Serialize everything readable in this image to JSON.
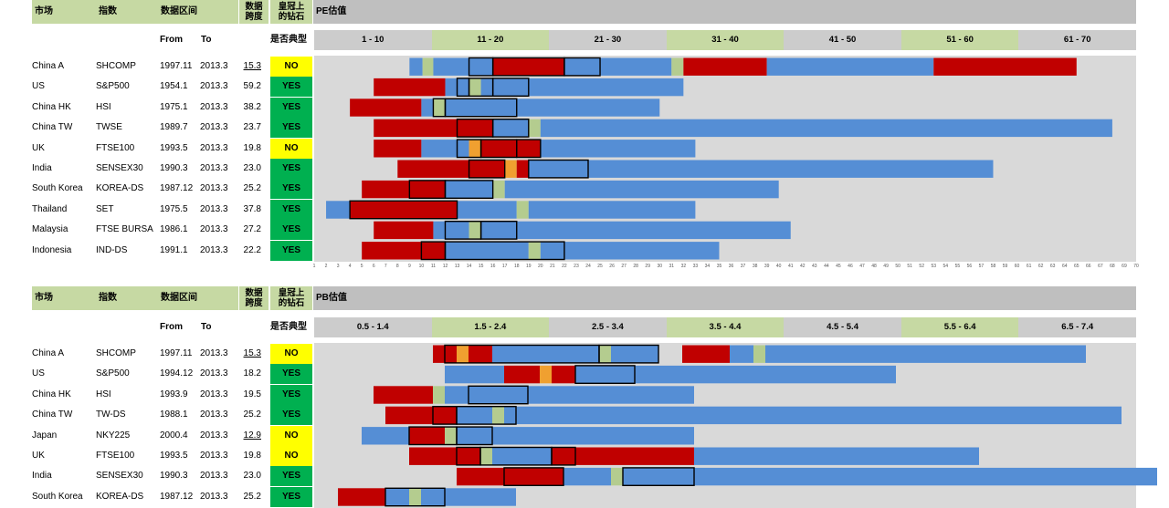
{
  "colors": {
    "header_gray": "#bfbfbf",
    "header_green": "#c6d9a3",
    "range_gray": "#cccccc",
    "plot_bg": "#d9d9d9",
    "blue": "#558ed5",
    "red": "#c00000",
    "yes": "#00b050",
    "no": "#ffff00",
    "marker_green": "#b4cc8f",
    "marker_orange": "#f0a030"
  },
  "headers": {
    "market": "市场",
    "index": "指数",
    "range": "数据区间",
    "span_line1": "数据",
    "span_line2": "跨度",
    "crown_line1": "皇冠上",
    "crown_line2": "的钻石",
    "from": "From",
    "to": "To",
    "typical": "是否典型"
  },
  "chart_data": [
    {
      "type": "bar",
      "title": "PE估值",
      "range_bins": [
        "1 - 10",
        "11 - 20",
        "21 - 30",
        "31 - 40",
        "41 - 50",
        "51 - 60",
        "61 - 70"
      ],
      "xlim": [
        1,
        70
      ],
      "x_ticks": [
        1,
        2,
        3,
        4,
        5,
        6,
        7,
        8,
        9,
        10,
        11,
        12,
        13,
        14,
        15,
        16,
        17,
        18,
        19,
        20,
        21,
        22,
        23,
        24,
        25,
        26,
        27,
        28,
        29,
        30,
        31,
        32,
        33,
        34,
        35,
        36,
        37,
        38,
        39,
        40,
        41,
        42,
        43,
        44,
        45,
        46,
        47,
        48,
        49,
        50,
        51,
        52,
        53,
        54,
        55,
        56,
        57,
        58,
        59,
        60,
        61,
        62,
        63,
        64,
        65,
        66,
        67,
        68,
        69,
        70
      ],
      "rows": [
        {
          "market": "China A",
          "index": "SHCOMP",
          "from": "1997.11",
          "to": "2013.3",
          "span": "15.3",
          "span_underline": true,
          "typical": "NO",
          "segments": [
            [
              9,
              10.1,
              "blue"
            ],
            [
              10.1,
              11,
              "green"
            ],
            [
              11,
              16,
              "blue"
            ],
            [
              16,
              22,
              "red"
            ],
            [
              22,
              25,
              "blue"
            ],
            [
              25,
              31,
              "blue"
            ],
            [
              31,
              32,
              "green"
            ],
            [
              32,
              39,
              "red"
            ],
            [
              39,
              53,
              "blue"
            ],
            [
              53,
              65,
              "red"
            ]
          ],
          "boxes": [
            [
              14,
              16
            ],
            [
              16,
              22
            ],
            [
              22,
              25
            ]
          ]
        },
        {
          "market": "US",
          "index": "S&P500",
          "from": "1954.1",
          "to": "2013.3",
          "span": "59.2",
          "typical": "YES",
          "segments": [
            [
              6,
              12,
              "red"
            ],
            [
              12,
              14,
              "blue"
            ],
            [
              14,
              15,
              "green"
            ],
            [
              15,
              32,
              "blue"
            ]
          ],
          "boxes": [
            [
              13,
              14
            ],
            [
              14,
              16
            ],
            [
              16,
              19
            ]
          ]
        },
        {
          "market": "China HK",
          "index": "HSI",
          "from": "1975.1",
          "to": "2013.3",
          "span": "38.2",
          "typical": "YES",
          "segments": [
            [
              4,
              10,
              "red"
            ],
            [
              10,
              11,
              "blue"
            ],
            [
              11,
              12,
              "green"
            ],
            [
              12,
              30,
              "blue"
            ]
          ],
          "boxes": [
            [
              11,
              12
            ],
            [
              12,
              18
            ]
          ]
        },
        {
          "market": "China TW",
          "index": "TWSE",
          "from": "1989.7",
          "to": "2013.3",
          "span": "23.7",
          "typical": "YES",
          "segments": [
            [
              6,
              13,
              "red"
            ],
            [
              13,
              16,
              "red"
            ],
            [
              16,
              19,
              "blue"
            ],
            [
              19,
              20,
              "green"
            ],
            [
              20,
              68,
              "blue"
            ]
          ],
          "boxes": [
            [
              13,
              16
            ],
            [
              16,
              19
            ]
          ]
        },
        {
          "market": "UK",
          "index": "FTSE100",
          "from": "1993.5",
          "to": "2013.3",
          "span": "19.8",
          "typical": "NO",
          "segments": [
            [
              6,
              10,
              "red"
            ],
            [
              10,
              13,
              "blue"
            ],
            [
              13,
              14,
              "blue"
            ],
            [
              14,
              15,
              "orange"
            ],
            [
              15,
              18,
              "red"
            ],
            [
              18,
              20,
              "red"
            ],
            [
              20,
              33,
              "blue"
            ]
          ],
          "boxes": [
            [
              13,
              15
            ],
            [
              15,
              18
            ],
            [
              18,
              20
            ]
          ]
        },
        {
          "market": "India",
          "index": "SENSEX30",
          "from": "1990.3",
          "to": "2013.3",
          "span": "23.0",
          "typical": "YES",
          "segments": [
            [
              8,
              14,
              "red"
            ],
            [
              14,
              17,
              "red"
            ],
            [
              17,
              18,
              "orange"
            ],
            [
              18,
              19,
              "red"
            ],
            [
              19,
              58,
              "blue"
            ]
          ],
          "boxes": [
            [
              14,
              17
            ],
            [
              19,
              24
            ]
          ]
        },
        {
          "market": "South Korea",
          "index": "KOREA-DS",
          "from": "1987.12",
          "to": "2013.3",
          "span": "25.2",
          "typical": "YES",
          "segments": [
            [
              5,
              9,
              "red"
            ],
            [
              9,
              12,
              "red"
            ],
            [
              12,
              16,
              "blue"
            ],
            [
              16,
              17,
              "green"
            ],
            [
              17,
              40,
              "blue"
            ]
          ],
          "boxes": [
            [
              9,
              12
            ],
            [
              12,
              16
            ]
          ]
        },
        {
          "market": "Thailand",
          "index": "SET",
          "from": "1975.5",
          "to": "2013.3",
          "span": "37.8",
          "typical": "YES",
          "segments": [
            [
              2,
              4,
              "blue"
            ],
            [
              4,
              13,
              "red"
            ],
            [
              13,
              18,
              "blue"
            ],
            [
              18,
              19,
              "green"
            ],
            [
              19,
              33,
              "blue"
            ]
          ],
          "boxes": [
            [
              4,
              13
            ]
          ]
        },
        {
          "market": "Malaysia",
          "index": "FTSE BURSA",
          "from": "1986.1",
          "to": "2013.3",
          "span": "27.2",
          "typical": "YES",
          "segments": [
            [
              6,
              11,
              "red"
            ],
            [
              11,
              14,
              "blue"
            ],
            [
              14,
              15,
              "green"
            ],
            [
              15,
              41,
              "blue"
            ]
          ],
          "boxes": [
            [
              12,
              15
            ],
            [
              15,
              18
            ]
          ]
        },
        {
          "market": "Indonesia",
          "index": "IND-DS",
          "from": "1991.1",
          "to": "2013.3",
          "span": "22.2",
          "typical": "YES",
          "segments": [
            [
              5,
              10,
              "red"
            ],
            [
              10,
              12,
              "red"
            ],
            [
              12,
              19,
              "blue"
            ],
            [
              19,
              20,
              "green"
            ],
            [
              20,
              35,
              "blue"
            ]
          ],
          "boxes": [
            [
              10,
              12
            ],
            [
              12,
              22
            ]
          ]
        }
      ]
    },
    {
      "type": "bar",
      "title": "PB估值",
      "range_bins": [
        "0.5 - 1.4",
        "1.5 - 2.4",
        "2.5 - 3.4",
        "3.5 - 4.4",
        "4.5 - 5.4",
        "5.5 - 6.4",
        "6.5 - 7.4"
      ],
      "xlim": [
        0.5,
        7.4
      ],
      "rows": [
        {
          "market": "China A",
          "index": "SHCOMP",
          "from": "1997.11",
          "to": "2013.3",
          "span": "15.3",
          "span_underline": true,
          "typical": "NO",
          "segments": [
            [
              1.4,
              1.5,
              "red"
            ],
            [
              1.5,
              1.6,
              "red"
            ],
            [
              1.6,
              1.7,
              "orange"
            ],
            [
              1.7,
              1.9,
              "red"
            ],
            [
              1.9,
              2.8,
              "blue"
            ],
            [
              2.8,
              2.9,
              "green"
            ],
            [
              2.9,
              3.3,
              "blue"
            ],
            [
              3.5,
              3.9,
              "red"
            ],
            [
              3.9,
              4.1,
              "blue"
            ],
            [
              4.1,
              4.2,
              "green"
            ],
            [
              4.2,
              6.9,
              "blue"
            ]
          ],
          "boxes": [
            [
              1.5,
              2.8
            ],
            [
              2.8,
              3.3
            ]
          ]
        },
        {
          "market": "US",
          "index": "S&P500",
          "from": "1994.12",
          "to": "2013.3",
          "span": "18.2",
          "typical": "YES",
          "segments": [
            [
              1.5,
              2.0,
              "blue"
            ],
            [
              2.0,
              2.3,
              "red"
            ],
            [
              2.3,
              2.4,
              "orange"
            ],
            [
              2.4,
              2.6,
              "red"
            ],
            [
              2.6,
              5.3,
              "blue"
            ]
          ],
          "boxes": [
            [
              2.6,
              3.1
            ]
          ]
        },
        {
          "market": "China HK",
          "index": "HSI",
          "from": "1993.9",
          "to": "2013.3",
          "span": "19.5",
          "typical": "YES",
          "segments": [
            [
              0.9,
              1.4,
              "red"
            ],
            [
              1.4,
              1.5,
              "green"
            ],
            [
              1.5,
              2.0,
              "blue"
            ],
            [
              2.0,
              3.6,
              "blue"
            ]
          ],
          "boxes": [
            [
              1.7,
              2.2
            ]
          ]
        },
        {
          "market": "China TW",
          "index": "TW-DS",
          "from": "1988.1",
          "to": "2013.3",
          "span": "25.2",
          "typical": "YES",
          "segments": [
            [
              1.0,
              1.4,
              "red"
            ],
            [
              1.4,
              1.6,
              "red"
            ],
            [
              1.6,
              1.9,
              "blue"
            ],
            [
              1.9,
              2.0,
              "green"
            ],
            [
              2.0,
              7.2,
              "blue"
            ]
          ],
          "boxes": [
            [
              1.4,
              1.6
            ],
            [
              1.6,
              2.1
            ]
          ]
        },
        {
          "market": "Japan",
          "index": "NKY225",
          "from": "2000.4",
          "to": "2013.3",
          "span": "12.9",
          "span_underline": true,
          "typical": "NO",
          "segments": [
            [
              0.8,
              1.2,
              "blue"
            ],
            [
              1.2,
              1.5,
              "red"
            ],
            [
              1.5,
              1.6,
              "green"
            ],
            [
              1.6,
              1.9,
              "blue"
            ],
            [
              1.9,
              3.6,
              "blue"
            ]
          ],
          "boxes": [
            [
              1.2,
              1.6
            ],
            [
              1.6,
              1.9
            ]
          ]
        },
        {
          "market": "UK",
          "index": "FTSE100",
          "from": "1993.5",
          "to": "2013.3",
          "span": "19.8",
          "typical": "NO",
          "segments": [
            [
              1.2,
              1.6,
              "red"
            ],
            [
              1.6,
              1.8,
              "red"
            ],
            [
              1.8,
              1.9,
              "green"
            ],
            [
              1.9,
              2.4,
              "blue"
            ],
            [
              2.4,
              2.6,
              "red"
            ],
            [
              2.6,
              3.6,
              "red"
            ],
            [
              3.6,
              6.0,
              "blue"
            ]
          ],
          "boxes": [
            [
              1.6,
              1.8
            ],
            [
              1.8,
              2.4
            ],
            [
              2.4,
              2.6
            ]
          ]
        },
        {
          "market": "India",
          "index": "SENSEX30",
          "from": "1990.3",
          "to": "2013.3",
          "span": "23.0",
          "typical": "YES",
          "segments": [
            [
              1.6,
              2.0,
              "red"
            ],
            [
              2.0,
              2.5,
              "red"
            ],
            [
              2.5,
              2.9,
              "blue"
            ],
            [
              2.9,
              3.0,
              "green"
            ],
            [
              3.0,
              3.6,
              "blue"
            ],
            [
              3.6,
              7.5,
              "blue"
            ]
          ],
          "boxes": [
            [
              2.0,
              2.5
            ],
            [
              3.0,
              3.6
            ]
          ]
        },
        {
          "market": "South Korea",
          "index": "KOREA-DS",
          "from": "1987.12",
          "to": "2013.3",
          "span": "25.2",
          "typical": "YES",
          "segments": [
            [
              0.6,
              1.0,
              "red"
            ],
            [
              1.0,
              1.2,
              "blue"
            ],
            [
              1.2,
              1.3,
              "green"
            ],
            [
              1.3,
              2.1,
              "blue"
            ]
          ],
          "boxes": [
            [
              1.0,
              1.5
            ]
          ]
        }
      ]
    }
  ]
}
